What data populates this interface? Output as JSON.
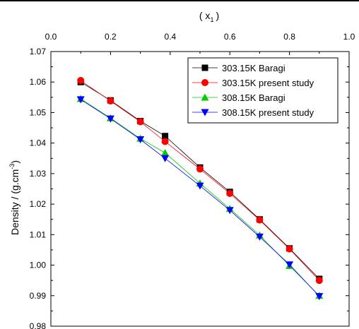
{
  "chart_data": {
    "type": "line",
    "xlabel_top": "( x",
    "xlabel_top_sub": "1",
    "xlabel_top_close": ")",
    "ylabel": "Density / (g.cm",
    "ylabel_sup": "-3",
    "ylabel_close": ")",
    "xlim": [
      0.0,
      1.0
    ],
    "ylim": [
      0.98,
      1.07
    ],
    "xticks": [
      "0.0",
      "0.2",
      "0.4",
      "0.6",
      "0.8",
      "1.0"
    ],
    "yticks": [
      "0.98",
      "0.99",
      "1.00",
      "1.01",
      "1.02",
      "1.03",
      "1.04",
      "1.05",
      "1.06",
      "1.07"
    ],
    "legend_position": "top-right",
    "series": [
      {
        "name": "303.15K Baragi",
        "color": "#000000",
        "marker": "square",
        "x": [
          0.1,
          0.2,
          0.3,
          0.383,
          0.5,
          0.6,
          0.7,
          0.8,
          0.9
        ],
        "y": [
          1.06,
          1.054,
          1.0472,
          1.0423,
          1.032,
          1.024,
          1.015,
          1.0055,
          0.9955
        ]
      },
      {
        "name": "303.15K present study",
        "color": "#ff0000",
        "marker": "circle",
        "x": [
          0.1,
          0.2,
          0.3,
          0.383,
          0.5,
          0.6,
          0.7,
          0.8,
          0.9
        ],
        "y": [
          1.0605,
          1.0538,
          1.047,
          1.0405,
          1.0315,
          1.0235,
          1.0148,
          1.0053,
          0.995
        ]
      },
      {
        "name": "308.15K Baragi",
        "color": "#00cc00",
        "marker": "triangle-up",
        "x": [
          0.1,
          0.2,
          0.3,
          0.383,
          0.5,
          0.6,
          0.7,
          0.8,
          0.9
        ],
        "y": [
          1.0545,
          1.0482,
          1.0415,
          1.0368,
          1.0268,
          1.0185,
          1.0098,
          0.9998,
          0.99
        ]
      },
      {
        "name": "308.15K present study",
        "color": "#0000ff",
        "marker": "triangle-down",
        "x": [
          0.1,
          0.2,
          0.3,
          0.383,
          0.5,
          0.6,
          0.7,
          0.8,
          0.9
        ],
        "y": [
          1.0543,
          1.048,
          1.0412,
          1.035,
          1.026,
          1.018,
          1.0093,
          1.0002,
          0.9898
        ]
      }
    ]
  }
}
